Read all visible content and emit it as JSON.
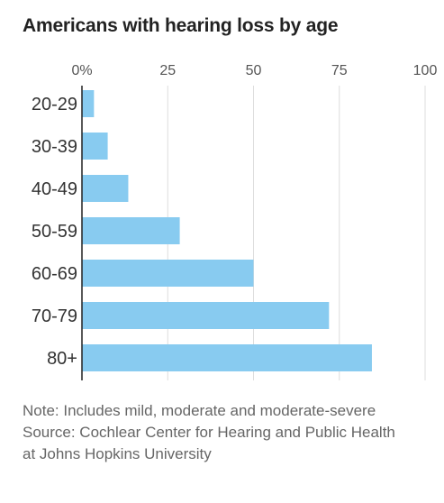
{
  "chart_data": {
    "type": "bar",
    "orientation": "horizontal",
    "title": "Americans with hearing loss by age",
    "categories": [
      "20-29",
      "30-39",
      "40-49",
      "50-59",
      "60-69",
      "70-79",
      "80+"
    ],
    "values": [
      3.5,
      7.5,
      13.5,
      28.5,
      50,
      72,
      84.5
    ],
    "xlim": [
      0,
      100
    ],
    "xticks": [
      0,
      25,
      50,
      75,
      100
    ],
    "xtick_labels": [
      "0%",
      "25",
      "50",
      "75",
      "100"
    ],
    "xlabel": "",
    "ylabel": "",
    "grid": true,
    "legend": "none",
    "bar_color": "#88cbf0",
    "grid_color": "#dddddd",
    "axis_color": "#222222"
  },
  "notes": {
    "note": "Note: Includes mild, moderate and moderate-severe",
    "source": "Source: Cochlear Center for Hearing and Public Health at Johns Hopkins University"
  }
}
